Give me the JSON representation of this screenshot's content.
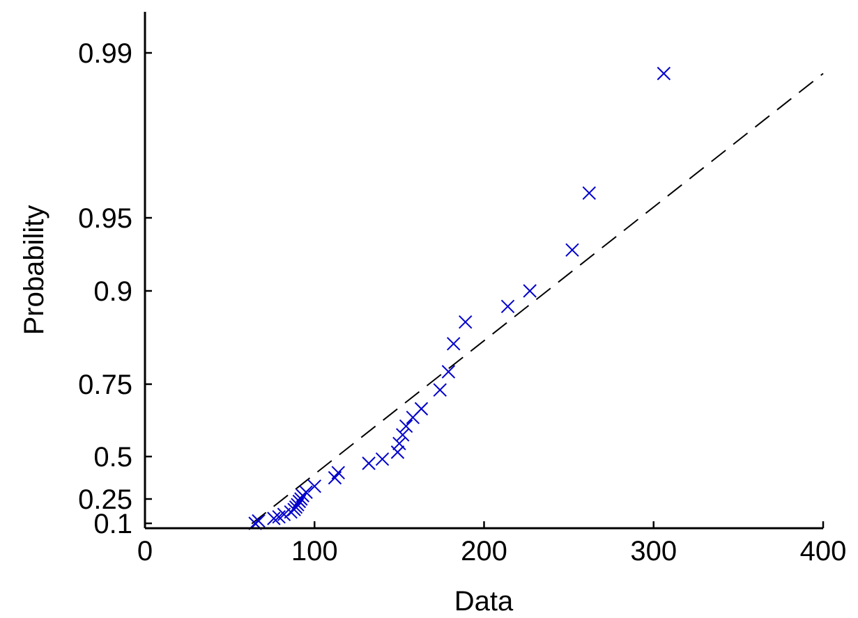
{
  "chart_data": {
    "type": "scatter",
    "title": "",
    "xlabel": "Data",
    "ylabel": "Probability",
    "xlim": [
      0,
      400
    ],
    "ylim_label_range": [
      0.1,
      0.99
    ],
    "y_scale": "probability",
    "grid": false,
    "legend": "none",
    "x_ticks": [
      {
        "value": 0,
        "label": "0"
      },
      {
        "value": 100,
        "label": "100"
      },
      {
        "value": 200,
        "label": "200"
      },
      {
        "value": 300,
        "label": "300"
      },
      {
        "value": 400,
        "label": "400"
      }
    ],
    "y_ticks": [
      {
        "value": 0.1,
        "label": "0.1"
      },
      {
        "value": 0.25,
        "label": "0.25"
      },
      {
        "value": 0.5,
        "label": "0.5"
      },
      {
        "value": 0.75,
        "label": "0.75"
      },
      {
        "value": 0.9,
        "label": "0.9"
      },
      {
        "value": 0.95,
        "label": "0.95"
      },
      {
        "value": 0.99,
        "label": "0.99"
      }
    ],
    "series": [
      {
        "marker": "x",
        "color": "#0000cc",
        "points": [
          [
            65,
            0.1
          ],
          [
            67,
            0.115
          ],
          [
            76,
            0.13
          ],
          [
            79,
            0.14
          ],
          [
            82,
            0.155
          ],
          [
            86,
            0.17
          ],
          [
            88,
            0.185
          ],
          [
            89,
            0.2
          ],
          [
            90,
            0.215
          ],
          [
            91,
            0.235
          ],
          [
            92,
            0.25
          ],
          [
            93,
            0.27
          ],
          [
            95,
            0.29
          ],
          [
            100,
            0.325
          ],
          [
            112,
            0.375
          ],
          [
            114,
            0.405
          ],
          [
            132,
            0.46
          ],
          [
            140,
            0.485
          ],
          [
            149,
            0.515
          ],
          [
            150,
            0.545
          ],
          [
            152,
            0.575
          ],
          [
            154,
            0.605
          ],
          [
            158,
            0.635
          ],
          [
            163,
            0.665
          ],
          [
            174,
            0.73
          ],
          [
            179,
            0.77
          ],
          [
            182,
            0.815
          ],
          [
            189,
            0.85
          ],
          [
            214,
            0.875
          ],
          [
            227,
            0.9
          ],
          [
            252,
            0.928
          ],
          [
            262,
            0.956
          ],
          [
            306,
            0.985
          ]
        ]
      },
      {
        "style": "dashed",
        "color": "#000000",
        "fit_line": [
          [
            63,
            0.098
          ],
          [
            400,
            0.985
          ]
        ]
      }
    ]
  }
}
